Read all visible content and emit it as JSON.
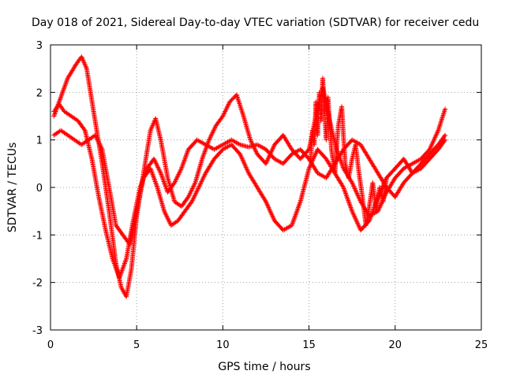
{
  "chart_data": {
    "type": "scatter",
    "title": "Day 018 of 2021, Sidereal Day-to-day VTEC variation (SDTVAR) for receiver cedu",
    "xlabel": "GPS time / hours",
    "ylabel": "SDTVAR / TECUs",
    "xlim": [
      0,
      25
    ],
    "ylim": [
      -3,
      3
    ],
    "xticks": [
      0,
      5,
      10,
      15,
      20,
      25
    ],
    "yticks": [
      -3,
      -2,
      -1,
      0,
      1,
      2,
      3
    ],
    "grid": true,
    "marker": "plus",
    "color": "#ff0000",
    "series": [
      {
        "x": [
          0.2,
          0.6,
          1.0,
          1.5,
          1.8,
          2.1,
          2.5,
          3.0,
          3.4,
          3.8,
          4.1,
          4.4,
          4.7,
          5.0,
          5.4,
          5.8,
          6.1,
          6.4,
          6.8,
          7.2,
          7.6,
          8.0,
          8.4,
          8.8,
          9.2,
          9.6,
          10.0,
          10.4,
          10.8,
          11.2,
          11.6,
          12.0,
          12.5,
          13.0,
          13.5,
          14.0,
          14.5,
          15.0,
          15.4,
          15.8,
          16.2,
          16.6,
          17.0,
          17.5,
          18.0,
          18.5,
          19.0,
          19.5,
          20.0,
          20.5,
          21.0,
          21.5,
          22.0,
          22.5,
          22.9
        ],
        "y": [
          1.5,
          1.9,
          2.3,
          2.6,
          2.75,
          2.5,
          1.6,
          0.5,
          -0.5,
          -1.6,
          -2.1,
          -2.3,
          -1.7,
          -0.6,
          0.3,
          1.2,
          1.45,
          1.0,
          0.2,
          -0.3,
          -0.4,
          -0.2,
          0.1,
          0.6,
          1.0,
          1.3,
          1.5,
          1.8,
          1.95,
          1.5,
          1.0,
          0.7,
          0.5,
          0.9,
          1.1,
          0.8,
          0.6,
          0.8,
          1.5,
          2.1,
          1.4,
          0.8,
          0.4,
          0.1,
          -0.3,
          -0.6,
          -0.5,
          -0.1,
          0.2,
          0.4,
          0.5,
          0.6,
          0.8,
          1.2,
          1.65
        ]
      },
      {
        "x": [
          0.2,
          0.5,
          0.8,
          1.2,
          1.6,
          2.0,
          2.4,
          2.8,
          3.2,
          3.6,
          4.0,
          4.4,
          4.8,
          5.2,
          5.6,
          6.0,
          6.4,
          6.8,
          7.2,
          7.6,
          8.0,
          8.5,
          9.0,
          9.5,
          10.0,
          10.5,
          11.0,
          11.5,
          12.0,
          12.5,
          13.0,
          13.5,
          14.0,
          14.5,
          15.0,
          15.5,
          16.0,
          16.5,
          17.0,
          17.5,
          18.0,
          18.5,
          19.0,
          19.5,
          20.0,
          20.5,
          21.0,
          21.5,
          22.0,
          22.5,
          22.9
        ],
        "y": [
          1.6,
          1.75,
          1.6,
          1.5,
          1.4,
          1.2,
          0.6,
          -0.2,
          -0.9,
          -1.5,
          -1.9,
          -1.5,
          -0.7,
          0.0,
          0.4,
          0.6,
          0.3,
          -0.1,
          0.1,
          0.4,
          0.8,
          1.0,
          0.9,
          0.8,
          0.9,
          1.0,
          0.9,
          0.85,
          0.9,
          0.8,
          0.6,
          0.5,
          0.7,
          0.8,
          0.6,
          0.3,
          0.2,
          0.5,
          0.8,
          1.0,
          0.9,
          0.6,
          0.3,
          0.0,
          -0.2,
          0.1,
          0.3,
          0.4,
          0.6,
          0.8,
          1.0
        ]
      },
      {
        "x": [
          0.2,
          0.6,
          1.0,
          1.4,
          1.8,
          2.2,
          2.6,
          3.0,
          3.4,
          3.8,
          4.2,
          4.6,
          5.0,
          5.4,
          5.8,
          6.2,
          6.6,
          7.0,
          7.4,
          7.8,
          8.2,
          8.6,
          9.0,
          9.5,
          10.0,
          10.5,
          11.0,
          11.5,
          12.0,
          12.5,
          13.0,
          13.5,
          14.0,
          14.5,
          15.0,
          15.5,
          16.0,
          16.5,
          17.0,
          17.5,
          18.0,
          18.5,
          19.0,
          19.5,
          20.0,
          20.5,
          21.0,
          21.5,
          22.0,
          22.5,
          22.9
        ],
        "y": [
          1.1,
          1.2,
          1.1,
          1.0,
          0.9,
          1.0,
          1.1,
          0.8,
          0.0,
          -0.8,
          -1.0,
          -1.2,
          -0.5,
          0.2,
          0.4,
          0.0,
          -0.5,
          -0.8,
          -0.7,
          -0.5,
          -0.3,
          0.0,
          0.3,
          0.6,
          0.8,
          0.9,
          0.7,
          0.3,
          0.0,
          -0.3,
          -0.7,
          -0.9,
          -0.8,
          -0.3,
          0.4,
          0.8,
          0.6,
          0.3,
          0.0,
          -0.5,
          -0.9,
          -0.7,
          -0.2,
          0.2,
          0.4,
          0.6,
          0.3,
          0.5,
          0.7,
          0.9,
          1.1
        ]
      },
      {
        "x": [
          15.1,
          15.2,
          15.3,
          15.4,
          15.5,
          15.6,
          15.7,
          15.8,
          15.9,
          16.0,
          16.1,
          16.3,
          16.5,
          16.7,
          16.9,
          17.1,
          17.3,
          17.5,
          17.7,
          17.9,
          18.1,
          18.3,
          18.5,
          18.7,
          18.9,
          19.1,
          19.3,
          19.5
        ],
        "y": [
          0.6,
          1.2,
          0.9,
          1.8,
          1.1,
          2.0,
          1.4,
          2.3,
          1.6,
          1.0,
          1.9,
          0.8,
          0.3,
          1.3,
          1.7,
          0.5,
          0.2,
          0.6,
          0.9,
          0.3,
          -0.2,
          -0.8,
          -0.4,
          0.1,
          -0.5,
          0.0,
          -0.3,
          0.2
        ]
      }
    ]
  }
}
